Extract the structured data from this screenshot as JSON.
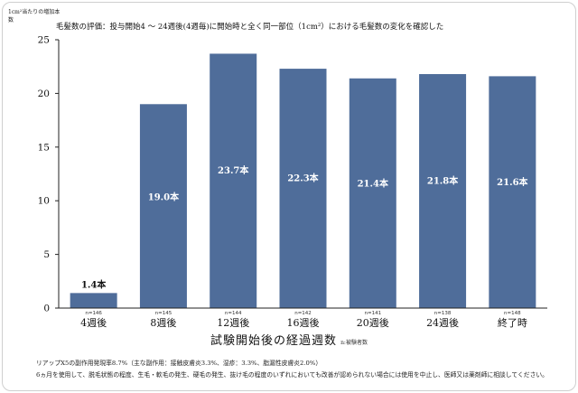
{
  "y_caption": "1cm²当たりの増加本数",
  "title": "毛髪数の評価：投与開始4 ～ 24週後(4週毎)に開始時と全く同一部位（1cm²）における毛髪数の変化を確認した",
  "chart_data": {
    "type": "bar",
    "categories": [
      "4週後",
      "8週後",
      "12週後",
      "16週後",
      "20週後",
      "24週後",
      "終了時"
    ],
    "values": [
      1.4,
      19.0,
      23.7,
      22.3,
      21.4,
      21.8,
      21.6
    ],
    "value_labels": [
      "1.4本",
      "19.0本",
      "23.7本",
      "22.3本",
      "21.4本",
      "21.8本",
      "21.6本"
    ],
    "n_labels": [
      "n=146",
      "n=145",
      "n=144",
      "n=142",
      "n=141",
      "n=138",
      "n=148"
    ],
    "yticks": [
      0,
      5,
      10,
      15,
      20,
      25
    ],
    "ylim": [
      0,
      25
    ],
    "xlabel": "試験開始後の経過週数",
    "xlabel_note": "n:被験者数",
    "bar_color": "#4f6d9a",
    "grid": false
  },
  "footnotes": [
    "リアップX5の副作用発現率8.7%（主な副作用：接触皮膚炎3.3%、湿疹：3.3%、脂漏性皮膚炎2.0%）",
    "6ヵ月を使用して、脱毛状態の程度、生毛・軟毛の発生、硬毛の発生、抜け毛の程度のいずれにおいても改善が認められない場合には使用を中止し、医師又は薬剤師に相談してください。"
  ]
}
